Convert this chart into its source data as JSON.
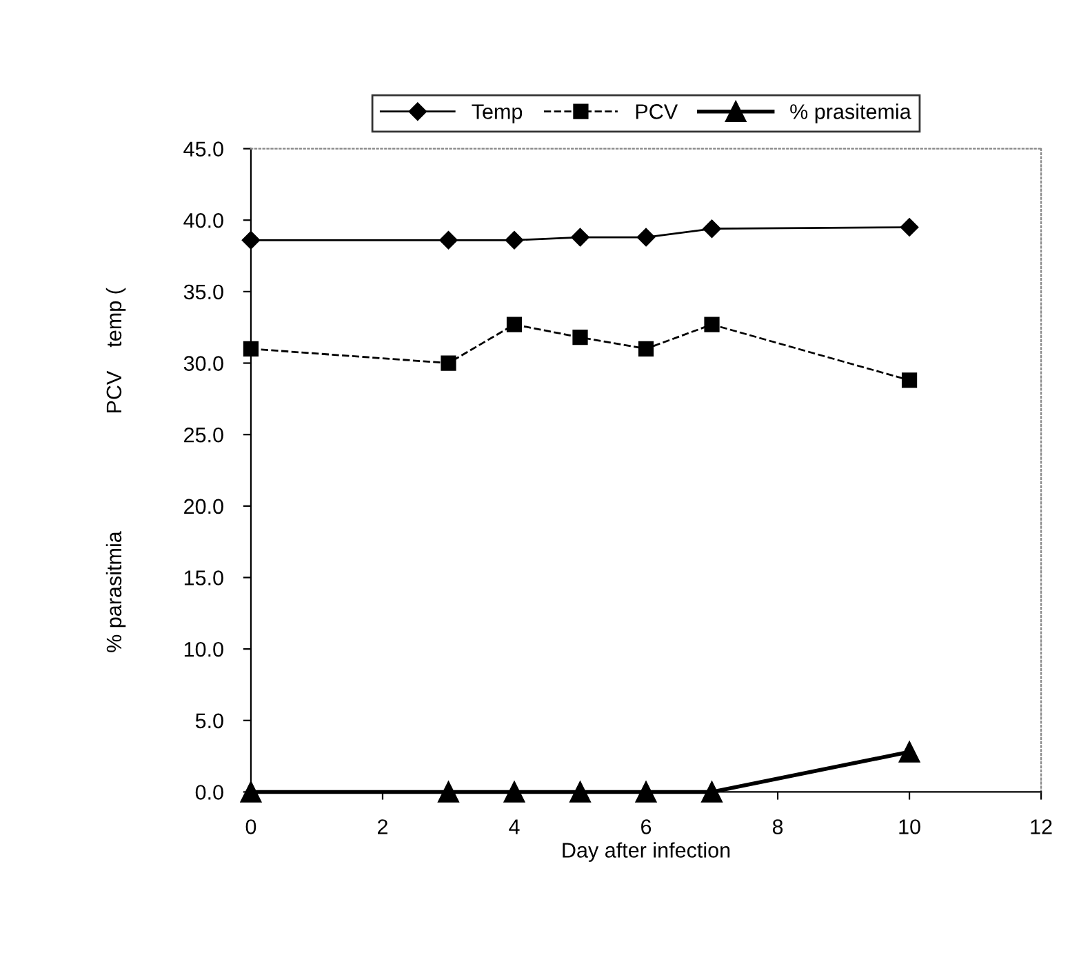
{
  "chart_data": {
    "type": "line",
    "xlabel": "Day after infection",
    "ylabel": "% parasitmia                    PCV    temp (",
    "x": [
      0,
      3,
      4,
      5,
      6,
      7,
      10
    ],
    "series": [
      {
        "name": "Temp",
        "color": "#000000",
        "marker": "diamond",
        "line_style": "solid",
        "values": [
          38.6,
          38.6,
          38.6,
          38.8,
          38.8,
          39.4,
          39.5
        ]
      },
      {
        "name": "PCV",
        "color": "#000000",
        "marker": "square",
        "line_style": "dashed",
        "values": [
          31.0,
          30.0,
          32.7,
          31.8,
          31.0,
          32.7,
          28.8
        ]
      },
      {
        "name": "% prasitemia",
        "color": "#000000",
        "marker": "triangle",
        "line_style": "solid",
        "values": [
          0,
          0,
          0,
          0,
          0,
          0,
          2.8
        ]
      }
    ],
    "xlim": [
      0,
      12
    ],
    "xticks": [
      0,
      2,
      4,
      6,
      8,
      10,
      12
    ],
    "ylim": [
      0,
      45
    ],
    "yticks": [
      {
        "value": 0,
        "label": "0.0"
      },
      {
        "value": 5,
        "label": "5.0"
      },
      {
        "value": 10,
        "label": "10.0"
      },
      {
        "value": 15,
        "label": "15.0"
      },
      {
        "value": 20,
        "label": "20.0"
      },
      {
        "value": 25,
        "label": "25.0"
      },
      {
        "value": 30,
        "label": "30.0"
      },
      {
        "value": 35,
        "label": "35.0"
      },
      {
        "value": 40,
        "label": "40.0"
      },
      {
        "value": 45,
        "label": "45.0"
      }
    ],
    "grid": false,
    "legend": "top"
  }
}
